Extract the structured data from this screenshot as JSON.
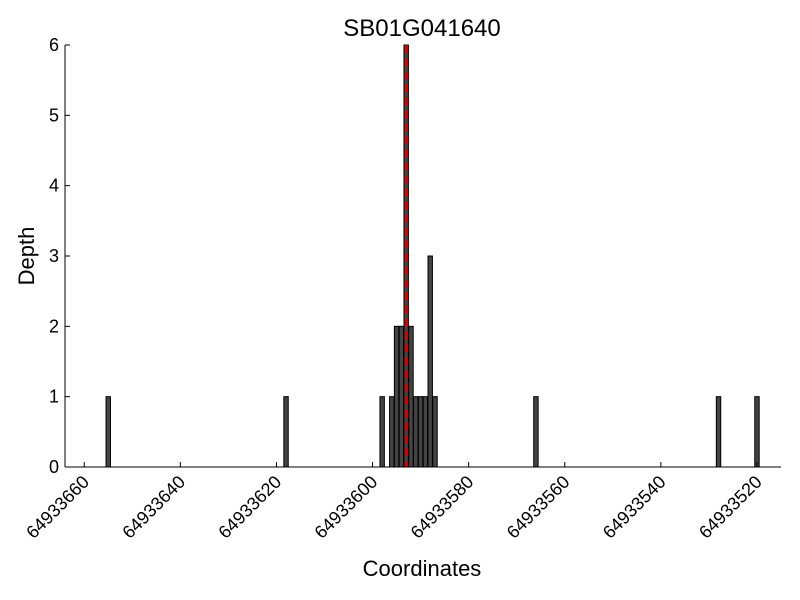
{
  "chart_data": {
    "type": "bar",
    "title": "SB01G041640",
    "xlabel": "Coordinates",
    "ylabel": "Depth",
    "x_reversed": true,
    "xlim": [
      64933664,
      64933515
    ],
    "ylim": [
      0,
      6
    ],
    "x_ticks": [
      64933660,
      64933640,
      64933620,
      64933600,
      64933580,
      64933560,
      64933540,
      64933520
    ],
    "y_ticks": [
      0,
      1,
      2,
      3,
      4,
      5,
      6
    ],
    "grid": false,
    "bar_color": "#444444",
    "marker_color": "#dd0000",
    "marker_x": 64933593,
    "bars": [
      {
        "x": 64933655,
        "y": 1
      },
      {
        "x": 64933618,
        "y": 1
      },
      {
        "x": 64933598,
        "y": 1
      },
      {
        "x": 64933596,
        "y": 1
      },
      {
        "x": 64933595,
        "y": 2
      },
      {
        "x": 64933594,
        "y": 2
      },
      {
        "x": 64933593,
        "y": 6
      },
      {
        "x": 64933592,
        "y": 2
      },
      {
        "x": 64933591,
        "y": 1
      },
      {
        "x": 64933590,
        "y": 1
      },
      {
        "x": 64933589,
        "y": 1
      },
      {
        "x": 64933588,
        "y": 3
      },
      {
        "x": 64933587,
        "y": 1
      },
      {
        "x": 64933566,
        "y": 1
      },
      {
        "x": 64933528,
        "y": 1
      },
      {
        "x": 64933520,
        "y": 1
      }
    ]
  }
}
